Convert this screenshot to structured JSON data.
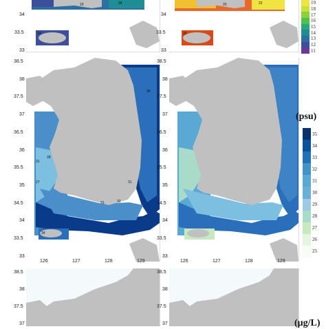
{
  "top_row": {
    "left_axis_ticks": [
      "34",
      "33.5",
      "33"
    ],
    "right_axis_ticks": [
      "34",
      "33.5",
      "33"
    ],
    "left_labels": [
      "19",
      "34",
      "14"
    ],
    "right_labels": [
      "20",
      "22",
      "26"
    ],
    "colorbar": {
      "ticks": [
        "19",
        "18",
        "17",
        "16",
        "15",
        "14",
        "13",
        "12",
        "11"
      ],
      "colors": [
        "#f0e442",
        "#c8e03a",
        "#8ed03c",
        "#4fbf4d",
        "#26a87c",
        "#1f8e94",
        "#2c6fa0",
        "#3d4f9a",
        "#6a3a98"
      ]
    }
  },
  "middle_row": {
    "unit_label": "(psu)",
    "y_ticks": [
      "38.5",
      "38",
      "37.5",
      "37",
      "36.5",
      "36",
      "35.5",
      "35",
      "34.5",
      "34",
      "33.5",
      "33"
    ],
    "x_ticks": [
      "126",
      "127",
      "128",
      "129"
    ],
    "left_labels": [
      "34",
      "28",
      "31",
      "27",
      "31",
      "32",
      "31",
      "34"
    ],
    "colorbar": {
      "ticks": [
        "35",
        "34",
        "33",
        "32",
        "31",
        "30",
        "29",
        "28",
        "27",
        "26",
        "25"
      ],
      "colors": [
        "#08306b",
        "#08519c",
        "#2171b5",
        "#4292c6",
        "#5aa8d4",
        "#6baed6",
        "#9ecae1",
        "#a8dcc8",
        "#c7e9c0",
        "#e5f5e0",
        "#f7fcf5"
      ]
    }
  },
  "bottom_row": {
    "unit_label": "(μg/L)",
    "y_ticks": [
      "38.5",
      "38",
      "37.5",
      "37"
    ]
  },
  "colors": {
    "land": "#c0c0c0",
    "deep_sea": "#0a3a8a",
    "mid_sea": "#2a6fba",
    "shallow_sea": "#7dbfe0"
  }
}
